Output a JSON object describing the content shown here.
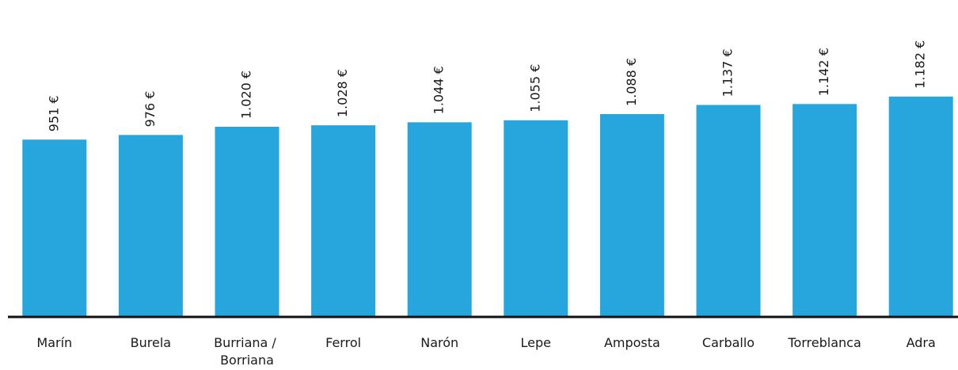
{
  "chart_data": {
    "type": "bar",
    "categories": [
      "Marín",
      "Burela",
      "Burriana / Borriana",
      "Ferrol",
      "Narón",
      "Lepe",
      "Amposta",
      "Carballo",
      "Torreblanca",
      "Adra"
    ],
    "values": [
      951,
      976,
      1020,
      1028,
      1044,
      1055,
      1088,
      1137,
      1142,
      1182
    ],
    "value_labels": [
      "951 €",
      "976 €",
      "1.020 €",
      "1.028 €",
      "1.044 €",
      "1.055 €",
      "1.088 €",
      "1.137 €",
      "1.142 €",
      "1.182 €"
    ],
    "color": "#26a6dd",
    "ylim": [
      0,
      1700
    ]
  }
}
